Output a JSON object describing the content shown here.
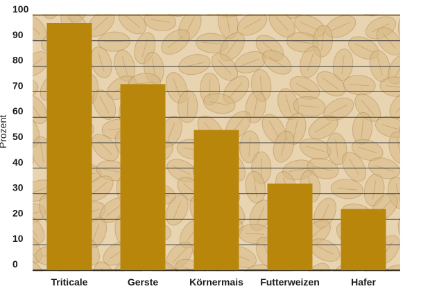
{
  "chart_data": {
    "type": "bar",
    "title": "",
    "xlabel": "",
    "ylabel": "Prozent",
    "ylim": [
      0,
      100
    ],
    "yticks": [
      0,
      10,
      20,
      30,
      40,
      50,
      60,
      70,
      80,
      90,
      100
    ],
    "categories": [
      "Triticale",
      "Gerste",
      "Körnermais",
      "Futterweizen",
      "Hafer"
    ],
    "values": [
      97,
      73,
      55,
      34,
      24
    ],
    "grid": true,
    "legend": "none",
    "colors": {
      "bar": "#b8860b",
      "grid": "#3a3a3a",
      "background_tint": "#e8d4b0",
      "grain_fill": "#d9b985",
      "grain_stroke": "#b08a55"
    }
  }
}
